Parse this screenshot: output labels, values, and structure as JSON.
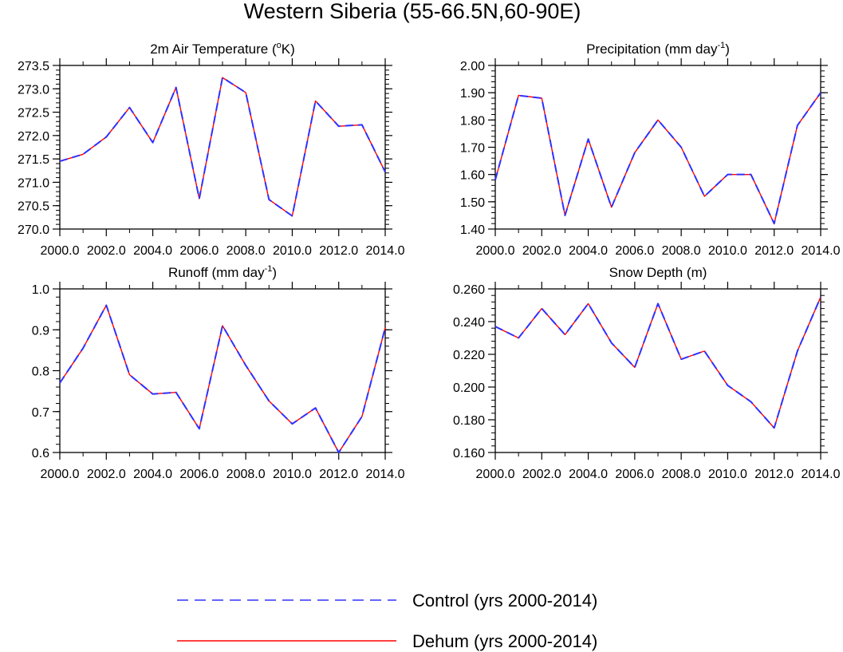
{
  "title": "Western Siberia (55-66.5N,60-90E)",
  "legend": [
    {
      "name": "Control (yrs 2000-2014)",
      "color": "#3030ff",
      "style": "dashed"
    },
    {
      "name": "Dehum (yrs 2000-2014)",
      "color": "#ff0000",
      "style": "solid"
    }
  ],
  "chart_data": [
    {
      "type": "line",
      "title": "2m Air Temperature (°K)",
      "title_parts": [
        "2m Air Temperature (",
        "o",
        "K)"
      ],
      "x": [
        2000,
        2001,
        2002,
        2003,
        2004,
        2005,
        2006,
        2007,
        2008,
        2009,
        2010,
        2011,
        2012,
        2013,
        2014
      ],
      "xlim": [
        2000,
        2014
      ],
      "xticks": [
        2000,
        2002,
        2004,
        2006,
        2008,
        2010,
        2012,
        2014
      ],
      "xticklabels": [
        "2000.0",
        "2002.0",
        "2004.0",
        "2006.0",
        "2008.0",
        "2010.0",
        "2012.0",
        "2014.0"
      ],
      "ylim": [
        270.0,
        273.5
      ],
      "yticks": [
        270.0,
        270.5,
        271.0,
        271.5,
        272.0,
        272.5,
        273.0,
        273.5
      ],
      "yticklabels": [
        "270.0",
        "270.5",
        "271.0",
        "271.5",
        "272.0",
        "272.5",
        "273.0",
        "273.5"
      ],
      "yminor": 0.1,
      "series": [
        {
          "name": "Control (yrs 2000-2014)",
          "values": [
            271.45,
            271.6,
            271.97,
            272.6,
            271.85,
            273.03,
            270.65,
            273.24,
            272.92,
            270.63,
            270.28,
            272.74,
            272.2,
            272.23,
            271.22
          ]
        },
        {
          "name": "Dehum (yrs 2000-2014)",
          "values": [
            271.45,
            271.6,
            271.97,
            272.6,
            271.85,
            273.03,
            270.65,
            273.24,
            272.92,
            270.63,
            270.28,
            272.74,
            272.2,
            272.23,
            271.22
          ]
        }
      ]
    },
    {
      "type": "line",
      "title": "Precipitation (mm day-1)",
      "title_parts": [
        "Precipitation (mm day",
        "-1",
        ")"
      ],
      "x": [
        2000,
        2001,
        2002,
        2003,
        2004,
        2005,
        2006,
        2007,
        2008,
        2009,
        2010,
        2011,
        2012,
        2013,
        2014
      ],
      "xlim": [
        2000,
        2014
      ],
      "xticks": [
        2000,
        2002,
        2004,
        2006,
        2008,
        2010,
        2012,
        2014
      ],
      "xticklabels": [
        "2000.0",
        "2002.0",
        "2004.0",
        "2006.0",
        "2008.0",
        "2010.0",
        "2012.0",
        "2014.0"
      ],
      "ylim": [
        1.4,
        2.0
      ],
      "yticks": [
        1.4,
        1.5,
        1.6,
        1.7,
        1.8,
        1.9,
        2.0
      ],
      "yticklabels": [
        "1.40",
        "1.50",
        "1.60",
        "1.70",
        "1.80",
        "1.90",
        "2.00"
      ],
      "yminor": 0.02,
      "series": [
        {
          "name": "Control (yrs 2000-2014)",
          "values": [
            1.58,
            1.89,
            1.88,
            1.45,
            1.73,
            1.48,
            1.68,
            1.8,
            1.7,
            1.52,
            1.6,
            1.6,
            1.42,
            1.78,
            1.9
          ]
        },
        {
          "name": "Dehum (yrs 2000-2014)",
          "values": [
            1.58,
            1.89,
            1.88,
            1.45,
            1.73,
            1.48,
            1.68,
            1.8,
            1.7,
            1.52,
            1.6,
            1.6,
            1.42,
            1.78,
            1.9
          ]
        }
      ]
    },
    {
      "type": "line",
      "title": "Runoff (mm day-1)",
      "title_parts": [
        "Runoff (mm day",
        "-1",
        ")"
      ],
      "x": [
        2000,
        2001,
        2002,
        2003,
        2004,
        2005,
        2006,
        2007,
        2008,
        2009,
        2010,
        2011,
        2012,
        2013,
        2014
      ],
      "xlim": [
        2000,
        2014
      ],
      "xticks": [
        2000,
        2002,
        2004,
        2006,
        2008,
        2010,
        2012,
        2014
      ],
      "xticklabels": [
        "2000.0",
        "2002.0",
        "2004.0",
        "2006.0",
        "2008.0",
        "2010.0",
        "2012.0",
        "2014.0"
      ],
      "ylim": [
        0.6,
        1.0
      ],
      "yticks": [
        0.6,
        0.7,
        0.8,
        0.9,
        1.0
      ],
      "yticklabels": [
        "0.6",
        "0.7",
        "0.8",
        "0.9",
        "1.0"
      ],
      "yminor": 0.02,
      "series": [
        {
          "name": "Control (yrs 2000-2014)",
          "values": [
            0.77,
            0.855,
            0.96,
            0.79,
            0.743,
            0.747,
            0.658,
            0.91,
            0.813,
            0.726,
            0.67,
            0.709,
            0.6,
            0.688,
            0.905
          ]
        },
        {
          "name": "Dehum (yrs 2000-2014)",
          "values": [
            0.77,
            0.855,
            0.96,
            0.79,
            0.743,
            0.747,
            0.658,
            0.91,
            0.813,
            0.726,
            0.67,
            0.709,
            0.6,
            0.688,
            0.905
          ]
        }
      ]
    },
    {
      "type": "line",
      "title": "Snow Depth (m)",
      "title_parts": [
        "Snow Depth (m)",
        "",
        ""
      ],
      "x": [
        2000,
        2001,
        2002,
        2003,
        2004,
        2005,
        2006,
        2007,
        2008,
        2009,
        2010,
        2011,
        2012,
        2013,
        2014
      ],
      "xlim": [
        2000,
        2014
      ],
      "xticks": [
        2000,
        2002,
        2004,
        2006,
        2008,
        2010,
        2012,
        2014
      ],
      "xticklabels": [
        "2000.0",
        "2002.0",
        "2004.0",
        "2006.0",
        "2008.0",
        "2010.0",
        "2012.0",
        "2014.0"
      ],
      "ylim": [
        0.16,
        0.26
      ],
      "yticks": [
        0.16,
        0.18,
        0.2,
        0.22,
        0.24,
        0.26
      ],
      "yticklabels": [
        "0.160",
        "0.180",
        "0.200",
        "0.220",
        "0.240",
        "0.260"
      ],
      "yminor": 0.004,
      "series": [
        {
          "name": "Control (yrs 2000-2014)",
          "values": [
            0.237,
            0.23,
            0.248,
            0.232,
            0.251,
            0.227,
            0.212,
            0.251,
            0.217,
            0.222,
            0.201,
            0.191,
            0.175,
            0.222,
            0.255
          ]
        },
        {
          "name": "Dehum (yrs 2000-2014)",
          "values": [
            0.237,
            0.23,
            0.248,
            0.232,
            0.251,
            0.227,
            0.212,
            0.251,
            0.217,
            0.222,
            0.201,
            0.191,
            0.175,
            0.222,
            0.255
          ]
        }
      ]
    }
  ]
}
